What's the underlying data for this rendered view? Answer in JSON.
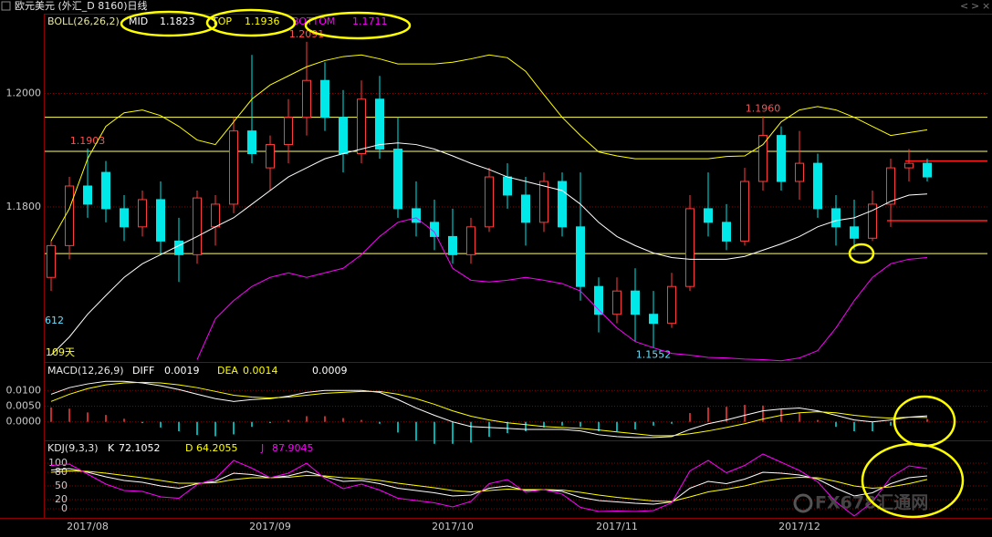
{
  "header": {
    "title": "欧元美元 (外汇_D 8160)日线"
  },
  "watermark": "FX678汇通网",
  "chart_data": [
    {
      "type": "candlestick",
      "title": "BOLL(26,26,2)",
      "open": [
        1.1676,
        1.1732,
        1.1837,
        1.1861,
        1.1797,
        1.1765,
        1.1813,
        1.174,
        1.1716,
        1.1765,
        1.1805,
        1.1934,
        1.1869,
        1.191,
        1.1958,
        1.2023,
        1.1958,
        1.1894,
        1.199,
        1.1902,
        1.1797,
        1.1773,
        1.1748,
        1.1716,
        1.1765,
        1.1853,
        1.1821,
        1.1773,
        1.1845,
        1.1765,
        1.166,
        1.1611,
        1.1652,
        1.1611,
        1.1595,
        1.166,
        1.1797,
        1.1773,
        1.174,
        1.1845,
        1.1926,
        1.1845,
        1.1877,
        1.1797,
        1.1765,
        1.1745,
        1.1805,
        1.1869,
        1.1877
      ],
      "high": [
        1.174,
        1.1853,
        1.1903,
        1.1881,
        1.1821,
        1.1829,
        1.1845,
        1.1781,
        1.1829,
        1.1821,
        1.1958,
        1.2068,
        1.1926,
        1.199,
        1.2091,
        1.2055,
        1.2006,
        1.2023,
        1.2031,
        1.1958,
        1.1845,
        1.1813,
        1.1797,
        1.1781,
        1.1869,
        1.1877,
        1.1853,
        1.1861,
        1.1861,
        1.1861,
        1.1676,
        1.1676,
        1.1692,
        1.1652,
        1.1684,
        1.1821,
        1.1861,
        1.1805,
        1.1869,
        1.196,
        1.1942,
        1.1934,
        1.1894,
        1.1821,
        1.1813,
        1.1829,
        1.1885,
        1.1902,
        1.1885
      ],
      "low": [
        1.1652,
        1.1708,
        1.1781,
        1.1773,
        1.174,
        1.1748,
        1.1716,
        1.1668,
        1.17,
        1.1732,
        1.1789,
        1.1877,
        1.1829,
        1.1877,
        1.1926,
        1.1934,
        1.1861,
        1.1877,
        1.1885,
        1.1781,
        1.1748,
        1.1724,
        1.17,
        1.17,
        1.1756,
        1.1797,
        1.1732,
        1.1756,
        1.1748,
        1.1635,
        1.1579,
        1.1595,
        1.1563,
        1.1552,
        1.1587,
        1.1652,
        1.1748,
        1.1724,
        1.1732,
        1.1829,
        1.1829,
        1.1813,
        1.1781,
        1.1732,
        1.1724,
        1.174,
        1.1765,
        1.1845,
        1.1845
      ],
      "close": [
        1.1732,
        1.1837,
        1.1805,
        1.1797,
        1.1765,
        1.1813,
        1.174,
        1.1716,
        1.1816,
        1.1805,
        1.1934,
        1.1894,
        1.191,
        1.1958,
        1.2023,
        1.1958,
        1.1894,
        1.199,
        1.1902,
        1.1797,
        1.1773,
        1.1748,
        1.1716,
        1.1765,
        1.1853,
        1.1821,
        1.1773,
        1.1845,
        1.1765,
        1.166,
        1.1611,
        1.1652,
        1.1611,
        1.1595,
        1.166,
        1.1797,
        1.1773,
        1.174,
        1.1845,
        1.1926,
        1.1845,
        1.1877,
        1.1797,
        1.1765,
        1.1745,
        1.1805,
        1.1869,
        1.1877,
        1.1853
      ],
      "high_labels": [
        null,
        null,
        "1.1903",
        null,
        null,
        null,
        null,
        null,
        null,
        null,
        null,
        null,
        null,
        null,
        "1.2091",
        null,
        null,
        null,
        null,
        null,
        null,
        null,
        null,
        null,
        null,
        null,
        null,
        null,
        null,
        null,
        null,
        null,
        null,
        null,
        null,
        null,
        null,
        null,
        null,
        "1.1960",
        null,
        null,
        null,
        null,
        null,
        null,
        null,
        null,
        null
      ],
      "low_labels": [
        null,
        null,
        null,
        null,
        null,
        null,
        null,
        null,
        null,
        null,
        null,
        null,
        null,
        null,
        null,
        null,
        null,
        null,
        null,
        null,
        null,
        null,
        null,
        null,
        null,
        null,
        null,
        null,
        null,
        null,
        null,
        null,
        null,
        "1.1552",
        null,
        null,
        null,
        null,
        null,
        null,
        null,
        null,
        null,
        null,
        null,
        null,
        null,
        null,
        null
      ],
      "up_color": "#ff3c3c",
      "down_color": "#00e8e8",
      "series": [
        {
          "name": "MID",
          "color": "#ffffff",
          "values": [
            1.1539,
            1.1571,
            1.1611,
            1.1644,
            1.1676,
            1.17,
            1.1716,
            1.1732,
            1.1748,
            1.1765,
            1.1781,
            1.1805,
            1.1829,
            1.1853,
            1.1869,
            1.1885,
            1.1894,
            1.1902,
            1.191,
            1.1913,
            1.191,
            1.1902,
            1.189,
            1.1877,
            1.1866,
            1.1853,
            1.1845,
            1.1837,
            1.1829,
            1.1805,
            1.1773,
            1.1748,
            1.1732,
            1.1719,
            1.1711,
            1.1708,
            1.1708,
            1.1708,
            1.1713,
            1.1724,
            1.1735,
            1.1748,
            1.1765,
            1.1776,
            1.1781,
            1.1794,
            1.181,
            1.1821,
            1.1823
          ]
        },
        {
          "name": "TOP",
          "color": "#ffff00",
          "values": [
            1.174,
            1.1797,
            1.1885,
            1.1942,
            1.1966,
            1.1971,
            1.1961,
            1.1942,
            1.1918,
            1.191,
            1.195,
            1.199,
            1.2015,
            1.2031,
            1.2047,
            1.2058,
            1.2065,
            1.2068,
            1.2061,
            1.2052,
            1.2052,
            1.2052,
            1.2055,
            1.2061,
            1.2068,
            1.2063,
            1.2039,
            1.1998,
            1.1958,
            1.1926,
            1.1897,
            1.189,
            1.1885,
            1.1885,
            1.1885,
            1.1885,
            1.1885,
            1.1889,
            1.189,
            1.191,
            1.195,
            1.1971,
            1.1977,
            1.1971,
            1.1958,
            1.1942,
            1.1926,
            1.1931,
            1.1936
          ]
        },
        {
          "name": "BOTTOM",
          "color": "#ff00ff",
          "values": [
            null,
            null,
            null,
            null,
            null,
            null,
            null,
            null,
            1.1531,
            1.1603,
            1.1635,
            1.166,
            1.1676,
            1.1684,
            1.1676,
            1.1684,
            1.1692,
            1.1716,
            1.1748,
            1.1773,
            1.1781,
            1.1756,
            1.1692,
            1.1671,
            1.1668,
            1.1671,
            1.1676,
            1.1671,
            1.1665,
            1.1652,
            1.1619,
            1.1587,
            1.1563,
            1.1552,
            1.1542,
            1.1539,
            1.1535,
            1.1534,
            1.1532,
            1.1531,
            1.1529,
            1.1534,
            1.1547,
            1.1587,
            1.1635,
            1.1676,
            1.17,
            1.1708,
            1.1711
          ]
        }
      ],
      "hlines": [
        1.1958,
        1.1898,
        1.1718
      ],
      "hline_color": "#ffff66",
      "levels": [
        1.1881,
        1.1776
      ],
      "level_color": "#ff2020",
      "annotations": [
        "612",
        "109天"
      ],
      "ylim": [
        1.1527,
        1.2139
      ],
      "yticks": [
        {
          "value": 1.2,
          "label": "1.2000"
        },
        {
          "value": 1.18,
          "label": "1.1800"
        }
      ],
      "grid": true
    },
    {
      "type": "macd",
      "title": "MACD(12,26,9)",
      "series": [
        {
          "name": "DIFF",
          "color": "#ffffff",
          "values": [
            0.0088,
            0.0109,
            0.0121,
            0.0129,
            0.0129,
            0.0124,
            0.0115,
            0.0103,
            0.0088,
            0.0074,
            0.0065,
            0.0071,
            0.0074,
            0.0082,
            0.0094,
            0.01,
            0.01,
            0.01,
            0.0094,
            0.0071,
            0.0044,
            0.0021,
            0,
            -0.0015,
            -0.0018,
            -0.0021,
            -0.0024,
            -0.0024,
            -0.0024,
            -0.0029,
            -0.0041,
            -0.0047,
            -0.005,
            -0.005,
            -0.0047,
            -0.0024,
            -0.0006,
            0.0006,
            0.0021,
            0.0035,
            0.0041,
            0.0044,
            0.0035,
            0.0021,
            0.0006,
            0,
            0.0006,
            0.0015,
            0.0019
          ]
        },
        {
          "name": "DEA",
          "color": "#ffff00",
          "values": [
            0.0065,
            0.0088,
            0.0106,
            0.0118,
            0.0124,
            0.0126,
            0.0124,
            0.0118,
            0.0109,
            0.0097,
            0.0085,
            0.0079,
            0.0076,
            0.0079,
            0.0085,
            0.0091,
            0.0094,
            0.0097,
            0.0097,
            0.0088,
            0.0074,
            0.0056,
            0.0035,
            0.0018,
            0.0006,
            -0.0003,
            -0.0009,
            -0.0015,
            -0.0018,
            -0.0021,
            -0.0026,
            -0.0032,
            -0.0038,
            -0.0044,
            -0.0044,
            -0.0038,
            -0.0029,
            -0.0018,
            -0.0006,
            0.0009,
            0.0021,
            0.0029,
            0.0032,
            0.0029,
            0.0021,
            0.0015,
            0.0012,
            0.0015,
            0.0014
          ]
        }
      ],
      "histogram": {
        "up_color": "#ff3c3c",
        "down_color": "#00e8e8",
        "values": [
          0.0046,
          0.0042,
          0.003,
          0.0022,
          0.001,
          -0.0004,
          -0.0018,
          -0.003,
          -0.0042,
          -0.0046,
          -0.004,
          -0.0016,
          -0.0004,
          0.0006,
          0.0018,
          0.0018,
          0.0012,
          0.0006,
          -0.0006,
          -0.0034,
          -0.006,
          -0.007,
          -0.007,
          -0.0066,
          -0.0048,
          -0.0036,
          -0.003,
          -0.0018,
          -0.0012,
          -0.0016,
          -0.003,
          -0.003,
          -0.0024,
          -0.0012,
          -0.0006,
          0.0028,
          0.0046,
          0.0048,
          0.0054,
          0.0052,
          0.004,
          0.003,
          0.0006,
          -0.0016,
          -0.003,
          -0.003,
          -0.0012,
          0,
          0.0009
        ]
      },
      "ylim": [
        -0.0059,
        0.0188
      ],
      "yticks": [
        {
          "value": 0.01,
          "label": "0.0100"
        },
        {
          "value": 0.005,
          "label": "0.0050"
        },
        {
          "value": 0,
          "label": "0.0000"
        }
      ],
      "grid": true
    },
    {
      "type": "kdj",
      "title": "KDJ(9,3,3)",
      "categories": [
        null,
        null,
        "2017/08",
        null,
        null,
        null,
        null,
        null,
        null,
        null,
        null,
        null,
        "2017/09",
        null,
        null,
        null,
        null,
        null,
        null,
        null,
        null,
        null,
        "2017/10",
        null,
        null,
        null,
        null,
        null,
        null,
        null,
        null,
        "2017/11",
        null,
        null,
        null,
        null,
        null,
        null,
        null,
        null,
        null,
        "2017/12",
        null,
        null,
        null,
        null,
        null,
        null,
        null
      ],
      "series": [
        {
          "name": "K",
          "color": "#ffffff",
          "values": [
            85,
            88,
            80,
            70,
            62,
            58,
            50,
            45,
            55,
            60,
            78,
            75,
            68,
            72,
            82,
            70,
            60,
            62,
            55,
            45,
            40,
            35,
            28,
            30,
            45,
            50,
            40,
            42,
            38,
            25,
            18,
            15,
            12,
            10,
            15,
            45,
            60,
            55,
            65,
            80,
            78,
            74,
            65,
            45,
            28,
            35,
            55,
            68,
            72.1052
          ]
        },
        {
          "name": "D",
          "color": "#ffff00",
          "values": [
            80,
            83,
            82,
            78,
            73,
            68,
            62,
            56,
            56,
            57,
            64,
            68,
            68,
            69,
            73,
            72,
            68,
            66,
            62,
            56,
            51,
            46,
            40,
            37,
            40,
            43,
            42,
            42,
            41,
            36,
            30,
            25,
            21,
            17,
            16,
            26,
            37,
            43,
            50,
            60,
            66,
            69,
            68,
            60,
            50,
            45,
            48,
            55,
            64.2055
          ]
        },
        {
          "name": "J",
          "color": "#ff00ff",
          "values": [
            95,
            98,
            76,
            54,
            40,
            38,
            26,
            23,
            53,
            66,
            106,
            89,
            68,
            78,
            100,
            66,
            44,
            54,
            41,
            23,
            18,
            13,
            4,
            16,
            55,
            64,
            36,
            42,
            32,
            3,
            -6,
            -5,
            -6,
            -4,
            13,
            83,
            106,
            79,
            95,
            120,
            102,
            84,
            59,
            15,
            -16,
            15,
            69,
            94,
            87.9045
          ]
        }
      ],
      "ylim": [
        -20,
        148
      ],
      "yticks": [
        100,
        80,
        50,
        20,
        0
      ],
      "grid": true
    }
  ]
}
